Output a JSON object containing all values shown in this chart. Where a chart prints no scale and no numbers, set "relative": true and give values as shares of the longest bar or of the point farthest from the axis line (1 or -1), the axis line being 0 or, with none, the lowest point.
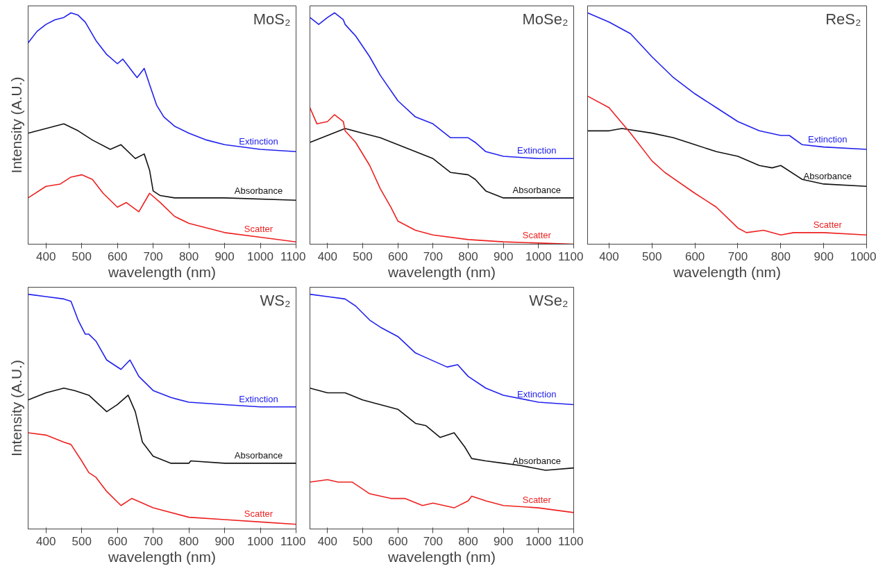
{
  "chart_data": [
    {
      "type": "line",
      "title": "MoS₂",
      "xlabel": "wavelength (nm)",
      "ylabel": "Intensity (A.U.)",
      "relative": true,
      "legend": false,
      "grid": false,
      "xlim": [
        350,
        1100
      ],
      "xticks": [
        400,
        500,
        600,
        700,
        800,
        900,
        1000,
        1100
      ],
      "series": [
        {
          "name": "Extinction",
          "color": "#2020ee",
          "x": [
            350,
            375,
            400,
            425,
            450,
            470,
            490,
            510,
            540,
            570,
            600,
            615,
            630,
            655,
            675,
            690,
            710,
            730,
            760,
            800,
            850,
            900,
            1000,
            1100
          ],
          "values": [
            0.87,
            0.92,
            0.95,
            0.97,
            0.98,
            1.0,
            0.99,
            0.96,
            0.88,
            0.82,
            0.78,
            0.8,
            0.77,
            0.72,
            0.76,
            0.69,
            0.6,
            0.55,
            0.51,
            0.48,
            0.45,
            0.43,
            0.41,
            0.4
          ]
        },
        {
          "name": "Absorbance",
          "color": "#111111",
          "x": [
            350,
            400,
            450,
            490,
            530,
            580,
            610,
            650,
            675,
            690,
            700,
            720,
            760,
            800,
            900,
            1100
          ],
          "values": [
            0.48,
            0.5,
            0.52,
            0.49,
            0.45,
            0.41,
            0.43,
            0.37,
            0.39,
            0.32,
            0.23,
            0.21,
            0.2,
            0.2,
            0.2,
            0.19
          ]
        },
        {
          "name": "Scatter",
          "color": "#ee2020",
          "x": [
            350,
            400,
            440,
            470,
            500,
            530,
            560,
            600,
            625,
            660,
            690,
            720,
            760,
            800,
            900,
            1000,
            1100
          ],
          "values": [
            0.2,
            0.25,
            0.26,
            0.29,
            0.3,
            0.28,
            0.22,
            0.16,
            0.18,
            0.14,
            0.22,
            0.18,
            0.12,
            0.09,
            0.05,
            0.03,
            0.01
          ]
        }
      ]
    },
    {
      "type": "line",
      "title": "MoSe₂",
      "xlabel": "wavelength (nm)",
      "relative": true,
      "legend": false,
      "grid": false,
      "xlim": [
        350,
        1100
      ],
      "xticks": [
        400,
        500,
        600,
        700,
        800,
        900,
        1000,
        1100
      ],
      "series": [
        {
          "name": "Extinction",
          "color": "#2020ee",
          "x": [
            350,
            375,
            400,
            420,
            445,
            450,
            480,
            520,
            550,
            600,
            650,
            700,
            750,
            800,
            820,
            850,
            900,
            1000,
            1100
          ],
          "values": [
            0.98,
            0.95,
            0.98,
            1.0,
            0.97,
            0.95,
            0.9,
            0.81,
            0.73,
            0.62,
            0.55,
            0.52,
            0.46,
            0.46,
            0.44,
            0.4,
            0.38,
            0.37,
            0.37
          ]
        },
        {
          "name": "Absorbance",
          "color": "#111111",
          "x": [
            350,
            400,
            450,
            500,
            550,
            600,
            650,
            700,
            750,
            800,
            820,
            850,
            900,
            1000,
            1100
          ],
          "values": [
            0.44,
            0.47,
            0.5,
            0.48,
            0.46,
            0.43,
            0.4,
            0.37,
            0.31,
            0.3,
            0.28,
            0.23,
            0.2,
            0.2,
            0.2
          ]
        },
        {
          "name": "Scatter",
          "color": "#ee2020",
          "x": [
            350,
            370,
            400,
            420,
            445,
            450,
            480,
            520,
            550,
            580,
            600,
            650,
            700,
            800,
            900,
            1100
          ],
          "values": [
            0.59,
            0.52,
            0.53,
            0.56,
            0.53,
            0.49,
            0.44,
            0.34,
            0.24,
            0.16,
            0.1,
            0.06,
            0.04,
            0.02,
            0.01,
            0.0
          ]
        }
      ]
    },
    {
      "type": "line",
      "title": "ReS₂",
      "xlabel": "wavelength (nm)",
      "relative": true,
      "legend": false,
      "grid": false,
      "xlim": [
        350,
        1000
      ],
      "xticks": [
        400,
        500,
        600,
        700,
        800,
        900,
        1000
      ],
      "series": [
        {
          "name": "Extinction",
          "color": "#2020ee",
          "x": [
            350,
            400,
            450,
            500,
            550,
            600,
            650,
            700,
            750,
            800,
            820,
            850,
            900,
            1000
          ],
          "values": [
            1.0,
            0.96,
            0.91,
            0.81,
            0.72,
            0.65,
            0.59,
            0.53,
            0.49,
            0.47,
            0.47,
            0.43,
            0.42,
            0.41
          ]
        },
        {
          "name": "Absorbance",
          "color": "#111111",
          "x": [
            350,
            400,
            430,
            500,
            550,
            600,
            650,
            700,
            750,
            780,
            800,
            850,
            900,
            1000
          ],
          "values": [
            0.49,
            0.49,
            0.5,
            0.48,
            0.46,
            0.43,
            0.4,
            0.38,
            0.34,
            0.33,
            0.34,
            0.28,
            0.26,
            0.25
          ]
        },
        {
          "name": "Scatter",
          "color": "#ee2020",
          "x": [
            350,
            400,
            450,
            500,
            530,
            600,
            650,
            700,
            720,
            760,
            800,
            830,
            900,
            1000
          ],
          "values": [
            0.64,
            0.59,
            0.48,
            0.36,
            0.31,
            0.22,
            0.16,
            0.07,
            0.05,
            0.06,
            0.04,
            0.05,
            0.05,
            0.04
          ]
        }
      ]
    },
    {
      "type": "line",
      "title": "WS₂",
      "xlabel": "wavelength (nm)",
      "ylabel": "Intensity (A.U.)",
      "relative": true,
      "legend": false,
      "grid": false,
      "xlim": [
        350,
        1100
      ],
      "xticks": [
        400,
        500,
        600,
        700,
        800,
        900,
        1000,
        1100
      ],
      "series": [
        {
          "name": "Extinction",
          "color": "#2020ee",
          "x": [
            350,
            400,
            450,
            470,
            490,
            510,
            520,
            540,
            570,
            610,
            635,
            660,
            700,
            750,
            800,
            900,
            1000,
            1100
          ],
          "values": [
            1.0,
            0.99,
            0.98,
            0.97,
            0.89,
            0.83,
            0.83,
            0.8,
            0.72,
            0.68,
            0.72,
            0.65,
            0.59,
            0.56,
            0.54,
            0.53,
            0.52,
            0.52
          ]
        },
        {
          "name": "Absorbance",
          "color": "#111111",
          "x": [
            350,
            400,
            450,
            480,
            520,
            570,
            600,
            630,
            650,
            670,
            700,
            750,
            800,
            805,
            900,
            1000,
            1100
          ],
          "values": [
            0.55,
            0.58,
            0.6,
            0.59,
            0.57,
            0.5,
            0.53,
            0.57,
            0.5,
            0.37,
            0.31,
            0.28,
            0.28,
            0.29,
            0.28,
            0.28,
            0.28
          ]
        },
        {
          "name": "Scatter",
          "color": "#ee2020",
          "x": [
            350,
            400,
            450,
            470,
            500,
            520,
            540,
            570,
            610,
            640,
            700,
            800,
            900,
            1000,
            1100
          ],
          "values": [
            0.41,
            0.4,
            0.37,
            0.36,
            0.29,
            0.24,
            0.22,
            0.16,
            0.1,
            0.13,
            0.09,
            0.05,
            0.04,
            0.03,
            0.02
          ]
        }
      ]
    },
    {
      "type": "line",
      "title": "WSe₂",
      "xlabel": "wavelength (nm)",
      "relative": true,
      "legend": false,
      "grid": false,
      "xlim": [
        350,
        1100
      ],
      "xticks": [
        400,
        500,
        600,
        700,
        800,
        900,
        1000,
        1100
      ],
      "series": [
        {
          "name": "Extinction",
          "color": "#2020ee",
          "x": [
            350,
            400,
            450,
            480,
            520,
            550,
            600,
            650,
            680,
            740,
            770,
            800,
            850,
            900,
            1000,
            1100
          ],
          "values": [
            1.0,
            0.99,
            0.98,
            0.95,
            0.89,
            0.86,
            0.82,
            0.75,
            0.73,
            0.69,
            0.7,
            0.65,
            0.6,
            0.57,
            0.54,
            0.53
          ]
        },
        {
          "name": "Absorbance",
          "color": "#111111",
          "x": [
            350,
            400,
            450,
            500,
            550,
            600,
            650,
            680,
            720,
            760,
            790,
            810,
            850,
            900,
            950,
            1020,
            1100
          ],
          "values": [
            0.6,
            0.58,
            0.58,
            0.55,
            0.53,
            0.51,
            0.45,
            0.44,
            0.39,
            0.41,
            0.35,
            0.3,
            0.29,
            0.28,
            0.27,
            0.25,
            0.26
          ]
        },
        {
          "name": "Scatter",
          "color": "#ee2020",
          "x": [
            350,
            400,
            430,
            470,
            520,
            580,
            620,
            670,
            700,
            760,
            800,
            810,
            850,
            900,
            1000,
            1100
          ],
          "values": [
            0.2,
            0.21,
            0.2,
            0.2,
            0.15,
            0.13,
            0.13,
            0.1,
            0.11,
            0.09,
            0.12,
            0.14,
            0.12,
            0.1,
            0.09,
            0.07
          ]
        }
      ]
    }
  ]
}
